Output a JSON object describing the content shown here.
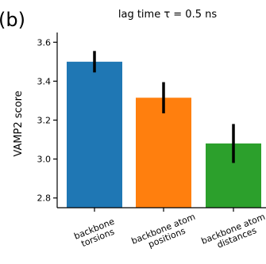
{
  "panel_label": "(b)",
  "chart_data": {
    "type": "bar",
    "title": "lag time τ = 0.5 ns",
    "ylabel": "VAMP2 score",
    "xlabel": "",
    "ylim": [
      2.75,
      3.65
    ],
    "yticks": [
      "2.8",
      "3.0",
      "3.2",
      "3.4",
      "3.6"
    ],
    "grid": false,
    "categories": [
      [
        "backbone",
        "torsions"
      ],
      [
        "backbone atom",
        "positions"
      ],
      [
        "backbone atom",
        "distances"
      ]
    ],
    "values": [
      3.5,
      3.315,
      3.08
    ],
    "errors": [
      0.055,
      0.08,
      0.1
    ],
    "colors": [
      "#1f77b4",
      "#ff7f0e",
      "#2ca02c"
    ]
  }
}
